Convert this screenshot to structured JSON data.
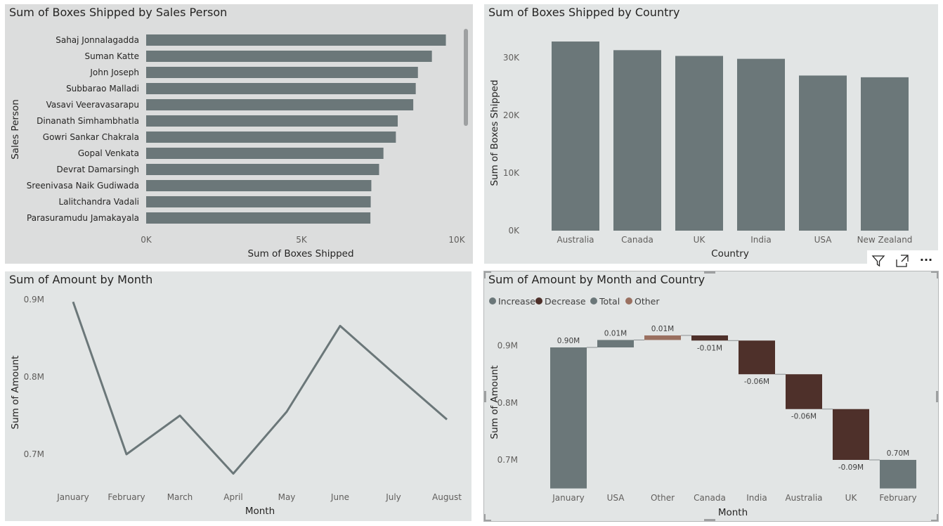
{
  "toolbar": {
    "more_label": "···"
  },
  "icons": {
    "filter": "filter-icon",
    "focus": "focus-mode-icon",
    "more": "more-options-icon"
  },
  "colors": {
    "bar": "#6b7779",
    "increase": "#6b7779",
    "decrease": "#4e302a",
    "total": "#6b7779",
    "other": "#9a7060",
    "line": "#6b7779"
  },
  "chart_data": [
    {
      "type": "bar",
      "orientation": "horizontal",
      "title": "Sum of Boxes Shipped by Sales Person",
      "xlabel": "Sum of Boxes Shipped",
      "ylabel": "Sales Person",
      "categories": [
        "Sahaj Jonnalagadda",
        "Suman Katte",
        "John Joseph",
        "Subbarao Malladi",
        "Vasavi Veeravasarapu",
        "Dinanath Simhambhatla",
        "Gowri Sankar Chakrala",
        "Gopal Venkata",
        "Devrat Damarsingh",
        "Sreenivasa Naik Gudiwada",
        "Lalitchandra Vadali",
        "Parasuramudu Jamakayala"
      ],
      "values": [
        9650,
        9200,
        8750,
        8680,
        8600,
        8100,
        8040,
        7640,
        7500,
        7250,
        7230,
        7220
      ],
      "xlim": [
        0,
        10000
      ],
      "xticks": [
        "0K",
        "5K",
        "10K"
      ],
      "grid": false
    },
    {
      "type": "bar",
      "title": "Sum of Boxes Shipped by Country",
      "xlabel": "Country",
      "ylabel": "Sum of Boxes Shipped",
      "categories": [
        "Australia",
        "Canada",
        "UK",
        "India",
        "USA",
        "New Zealand"
      ],
      "values": [
        32800,
        31300,
        30300,
        29800,
        26900,
        26600
      ],
      "ylim": [
        0,
        35000
      ],
      "yticks": [
        "0K",
        "10K",
        "20K",
        "30K"
      ],
      "grid": false
    },
    {
      "type": "line",
      "title": "Sum of Amount by Month",
      "xlabel": "Month",
      "ylabel": "Sum of Amount",
      "categories": [
        "January",
        "February",
        "March",
        "April",
        "May",
        "June",
        "July",
        "August"
      ],
      "values": [
        0.897,
        0.7,
        0.75,
        0.675,
        0.755,
        0.866,
        0.805,
        0.745
      ],
      "ylim": [
        0.65,
        0.91
      ],
      "yticks": [
        "0.7M",
        "0.8M",
        "0.9M"
      ],
      "grid": false
    },
    {
      "type": "waterfall",
      "title": "Sum of Amount by Month and Country",
      "xlabel": "Month",
      "ylabel": "Sum of Amount",
      "legend": [
        "Increase",
        "Decrease",
        "Total",
        "Other"
      ],
      "legend_position": "top-left",
      "categories": [
        "January",
        "USA",
        "Other",
        "Canada",
        "India",
        "Australia",
        "UK",
        "February"
      ],
      "steps": [
        {
          "kind": "total",
          "value": 0.897,
          "label": "0.90M"
        },
        {
          "kind": "increase",
          "value": 0.013,
          "label": "0.01M"
        },
        {
          "kind": "other",
          "value": 0.008,
          "label": "0.01M"
        },
        {
          "kind": "decrease",
          "value": -0.009,
          "label": "-0.01M"
        },
        {
          "kind": "decrease",
          "value": -0.059,
          "label": "-0.06M"
        },
        {
          "kind": "decrease",
          "value": -0.061,
          "label": "-0.06M"
        },
        {
          "kind": "decrease",
          "value": -0.089,
          "label": "-0.09M"
        },
        {
          "kind": "total",
          "value": 0.7,
          "label": "0.70M"
        }
      ],
      "ylim": [
        0.65,
        0.99
      ],
      "yticks": [
        "0.7M",
        "0.8M",
        "0.9M"
      ],
      "grid": false
    }
  ]
}
